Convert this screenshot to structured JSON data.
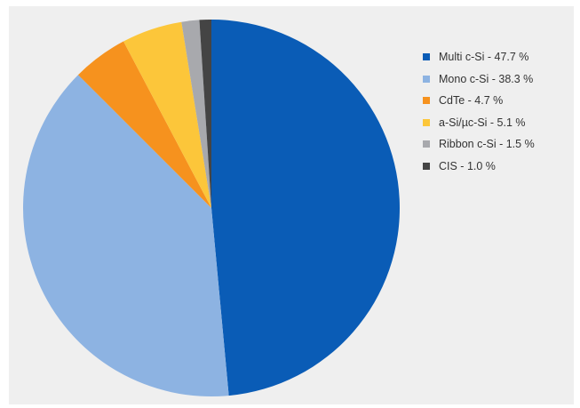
{
  "chart_data": {
    "type": "pie",
    "title": "",
    "start_angle_deg": 0,
    "direction": "clockwise",
    "slices": [
      {
        "label": "Multi c-Si - 47.7 %",
        "value": 47.7,
        "color": "#0a5cb6"
      },
      {
        "label": "Mono c-Si - 38.3 %",
        "value": 38.3,
        "color": "#8db3e2"
      },
      {
        "label": "CdTe - 4.7 %",
        "value": 4.7,
        "color": "#f6921e"
      },
      {
        "label": "a-Si/µc-Si - 5.1 %",
        "value": 5.1,
        "color": "#fcc63a"
      },
      {
        "label": "Ribbon c-Si - 1.5 %",
        "value": 1.5,
        "color": "#a8a9ad"
      },
      {
        "label": "CIS - 1.0 %",
        "value": 1.0,
        "color": "#444444"
      }
    ],
    "legend_position": "right",
    "background": "#efefef"
  }
}
